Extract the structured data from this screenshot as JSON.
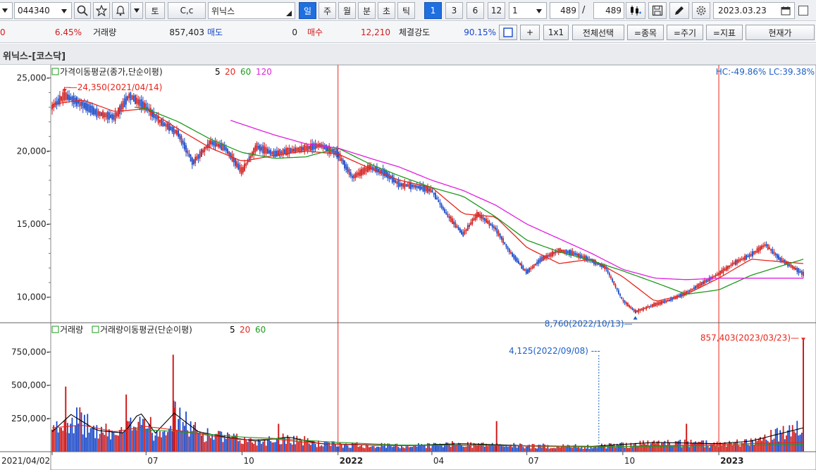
{
  "toolbar": {
    "code": "044340",
    "cc_label": "C,c",
    "name": "위닉스",
    "periods": [
      "일",
      "주",
      "월",
      "분",
      "초",
      "틱"
    ],
    "active_period": "일",
    "nums": [
      "1",
      "3",
      "6",
      "12"
    ],
    "active_num": "1",
    "unit": "1",
    "count_a": "489",
    "slash": "/",
    "count_b": "489",
    "date": "2023.03.23",
    "sat_label": "토"
  },
  "quote": {
    "first": "0",
    "change_pct": "6.45%",
    "volume_label": "거래량",
    "volume": "857,403",
    "ask_label": "매도",
    "ask": "0",
    "bid_label": "매수",
    "bid": "12,210",
    "strength_label": "체결강도",
    "strength": "90.15%",
    "plus_label": "+",
    "ratio_label": "1x1",
    "select_all_label": "전체선택",
    "item_label": "=종목",
    "period_label": "=주기",
    "indicator_label": "=지표",
    "price_label": "현재가"
  },
  "title": "위닉스-[코스닥]",
  "colors": {
    "ma5": "#000000",
    "ma20": "#e8251b",
    "ma60": "#1e9a1e",
    "ma120": "#e020e0",
    "up": "#d11c1c",
    "down": "#1848c8",
    "marker": "#e8251b",
    "annotation_blue": "#1d5fc8"
  },
  "legend": {
    "price_ma": {
      "name": "가격이동평균(종가,단순이평)",
      "periods": [
        "5",
        "20",
        "60",
        "120"
      ]
    },
    "volume": {
      "name": "거래량"
    },
    "volume_ma": {
      "name": "거래량이동평균(단순이평)",
      "periods": [
        "5",
        "20",
        "60"
      ]
    }
  },
  "stats": "HC:-49.86%  LC:39.38%",
  "annotations": {
    "high": "24,350(2021/04/14)",
    "low": "8,760(2022/10/13)",
    "vol_low": "4,125(2022/09/08)",
    "vol_last": "857,403(2023/03/23)"
  },
  "chart_data": {
    "type": "line",
    "title": "",
    "xlabel": "",
    "ylabel": "",
    "x_ticks": [
      "2021/04/02",
      "07",
      "10",
      "2022",
      "04",
      "07",
      "10",
      "2023"
    ],
    "price_axis": {
      "ticks": [
        "10,000",
        "15,000",
        "20,000",
        "25,000"
      ],
      "ylim": [
        8300,
        25900
      ]
    },
    "volume_axis": {
      "ticks": [
        "250,000",
        "500,000",
        "750,000"
      ],
      "ylim": [
        0,
        960000
      ]
    },
    "x_range": [
      "2021-04-02",
      "2023-03-23"
    ],
    "series": [
      {
        "name": "5",
        "x": [
          "2021-04-02",
          "2021-04-14",
          "2021-05-01",
          "2021-05-15",
          "2021-06-01",
          "2021-06-15",
          "2021-07-01",
          "2021-07-15",
          "2021-08-01",
          "2021-08-15",
          "2021-09-01",
          "2021-09-15",
          "2021-10-01",
          "2021-10-15",
          "2021-11-01",
          "2021-11-15",
          "2021-12-01",
          "2021-12-15",
          "2022-01-01",
          "2022-01-15",
          "2022-02-01",
          "2022-02-15",
          "2022-03-01",
          "2022-03-15",
          "2022-04-01",
          "2022-04-15",
          "2022-05-01",
          "2022-05-15",
          "2022-06-01",
          "2022-06-15",
          "2022-07-01",
          "2022-07-15",
          "2022-08-01",
          "2022-08-15",
          "2022-09-01",
          "2022-09-15",
          "2022-10-01",
          "2022-10-13",
          "2022-11-01",
          "2022-11-15",
          "2022-12-01",
          "2022-12-15",
          "2023-01-01",
          "2023-01-15",
          "2023-02-01",
          "2023-02-15",
          "2023-03-01",
          "2023-03-23"
        ],
        "values": [
          23000,
          23800,
          23200,
          22600,
          22300,
          23800,
          23000,
          22000,
          21200,
          19200,
          20600,
          20200,
          18600,
          20300,
          19800,
          20000,
          20200,
          20400,
          19800,
          18200,
          18900,
          18500,
          17700,
          17600,
          17300,
          15700,
          14300,
          15700,
          14700,
          13100,
          11700,
          12600,
          13200,
          13000,
          12500,
          12000,
          9800,
          9000,
          9500,
          9800,
          10300,
          10900,
          11600,
          12300,
          12900,
          13600,
          12600,
          11600
        ]
      },
      {
        "name": "20",
        "x": [
          "2021-04-02",
          "2021-05-01",
          "2021-06-01",
          "2021-07-01",
          "2021-08-01",
          "2021-09-01",
          "2021-10-01",
          "2021-11-01",
          "2021-12-01",
          "2022-01-01",
          "2022-02-01",
          "2022-03-01",
          "2022-04-01",
          "2022-05-01",
          "2022-06-01",
          "2022-07-01",
          "2022-08-01",
          "2022-09-01",
          "2022-10-01",
          "2022-11-01",
          "2022-12-01",
          "2023-01-01",
          "2023-02-01",
          "2023-03-23"
        ],
        "values": [
          23200,
          23500,
          22700,
          22900,
          21500,
          20200,
          19300,
          19700,
          20000,
          19800,
          18800,
          18000,
          17500,
          15700,
          15500,
          13400,
          12300,
          12600,
          11400,
          9700,
          10200,
          11300,
          12600,
          12300
        ]
      },
      {
        "name": "60",
        "x": [
          "2021-06-20",
          "2021-07-01",
          "2021-08-01",
          "2021-09-01",
          "2021-10-01",
          "2021-11-01",
          "2021-12-01",
          "2022-01-01",
          "2022-02-01",
          "2022-03-01",
          "2022-04-01",
          "2022-05-01",
          "2022-06-01",
          "2022-07-01",
          "2022-08-01",
          "2022-09-01",
          "2022-10-01",
          "2022-11-01",
          "2022-12-01",
          "2023-01-01",
          "2023-02-01",
          "2023-03-23"
        ],
        "values": [
          23000,
          22900,
          22000,
          20800,
          19900,
          19500,
          19600,
          20200,
          19100,
          18300,
          17500,
          16900,
          15500,
          13900,
          13100,
          12500,
          11800,
          11000,
          10200,
          10500,
          11500,
          12600
        ]
      },
      {
        "name": "120",
        "x": [
          "2021-09-20",
          "2021-11-01",
          "2021-12-01",
          "2022-01-01",
          "2022-02-01",
          "2022-03-01",
          "2022-04-01",
          "2022-05-01",
          "2022-06-01",
          "2022-07-01",
          "2022-08-01",
          "2022-09-01",
          "2022-10-01",
          "2022-11-01",
          "2022-12-01",
          "2023-01-01",
          "2023-02-01",
          "2023-03-23"
        ],
        "values": [
          22100,
          21100,
          20500,
          20200,
          19500,
          18900,
          18000,
          17300,
          16300,
          15000,
          14000,
          13000,
          11900,
          11300,
          11200,
          11300,
          11300,
          11300
        ]
      }
    ],
    "volume_series": [
      {
        "name": "5",
        "x": [
          "2021-04-02",
          "2021-04-20",
          "2021-05-15",
          "2021-06-10",
          "2021-06-25",
          "2021-07-10",
          "2021-07-28",
          "2021-08-20",
          "2021-09-15",
          "2021-10-15",
          "2021-11-15",
          "2021-12-15",
          "2022-01-15",
          "2022-03-01",
          "2022-05-01",
          "2022-07-01",
          "2022-09-01",
          "2022-11-01",
          "2023-01-01",
          "2023-02-01",
          "2023-03-23"
        ],
        "values": [
          150000,
          280000,
          160000,
          140000,
          300000,
          140000,
          290000,
          150000,
          110000,
          80000,
          110000,
          60000,
          55000,
          45000,
          60000,
          45000,
          40000,
          70000,
          60000,
          80000,
          180000
        ]
      },
      {
        "name": "20",
        "x": [
          "2021-04-02",
          "2021-05-01",
          "2021-06-01",
          "2021-07-01",
          "2021-08-01",
          "2021-09-01",
          "2021-10-01",
          "2021-11-01",
          "2021-12-01",
          "2022-01-01",
          "2022-03-01",
          "2022-05-01",
          "2022-07-01",
          "2022-09-01",
          "2022-11-01",
          "2023-01-01",
          "2023-03-23"
        ],
        "values": [
          180000,
          200000,
          150000,
          190000,
          160000,
          120000,
          90000,
          95000,
          70000,
          55000,
          45000,
          50000,
          42000,
          35000,
          45000,
          55000,
          70000
        ]
      },
      {
        "name": "60",
        "x": [
          "2021-06-20",
          "2021-08-01",
          "2021-09-01",
          "2021-10-01",
          "2021-11-01",
          "2021-12-01",
          "2022-01-01",
          "2022-03-01",
          "2022-05-01",
          "2022-07-01",
          "2022-09-01",
          "2022-11-01",
          "2023-01-01",
          "2023-03-23"
        ],
        "values": [
          170000,
          150000,
          130000,
          110000,
          100000,
          85000,
          70000,
          50000,
          48000,
          45000,
          40000,
          40000,
          45000,
          55000
        ]
      }
    ],
    "volume_spikes": [
      {
        "x": "2021-04-15",
        "value": 490000
      },
      {
        "x": "2021-06-12",
        "value": 430000
      },
      {
        "x": "2021-07-27",
        "value": 730000
      },
      {
        "x": "2021-07-28",
        "value": 330000
      },
      {
        "x": "2021-11-05",
        "value": 210000
      },
      {
        "x": "2022-06-02",
        "value": 230000
      },
      {
        "x": "2022-12-01",
        "value": 210000
      },
      {
        "x": "2023-03-23",
        "value": 857403
      }
    ]
  }
}
